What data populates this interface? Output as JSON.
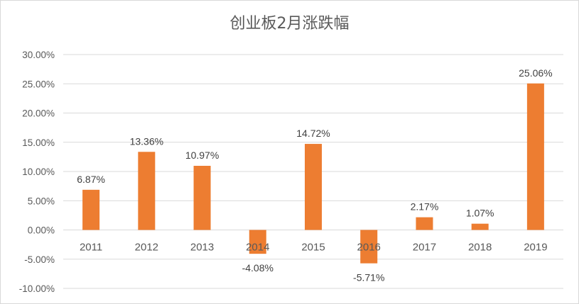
{
  "chart_data": {
    "type": "bar",
    "title": "创业板2月涨跌幅",
    "xlabel": "",
    "ylabel": "",
    "categories": [
      "2011",
      "2012",
      "2013",
      "2014",
      "2015",
      "2016",
      "2017",
      "2018",
      "2019"
    ],
    "values": [
      6.87,
      13.36,
      10.97,
      -4.08,
      14.72,
      -5.71,
      2.17,
      1.07,
      25.06
    ],
    "data_labels": [
      "6.87%",
      "13.36%",
      "10.97%",
      "-4.08%",
      "14.72%",
      "-5.71%",
      "2.17%",
      "1.07%",
      "25.06%"
    ],
    "ylim": [
      -10,
      30
    ],
    "yticks": [
      30,
      25,
      20,
      15,
      10,
      5,
      0,
      -5,
      -10
    ],
    "ytick_labels": [
      "30.00%",
      "25.00%",
      "20.00%",
      "15.00%",
      "10.00%",
      "5.00%",
      "0.00%",
      "-5.00%",
      "-10.00%"
    ],
    "bar_color": "#ED7D31",
    "grid": true,
    "legend": "none"
  }
}
